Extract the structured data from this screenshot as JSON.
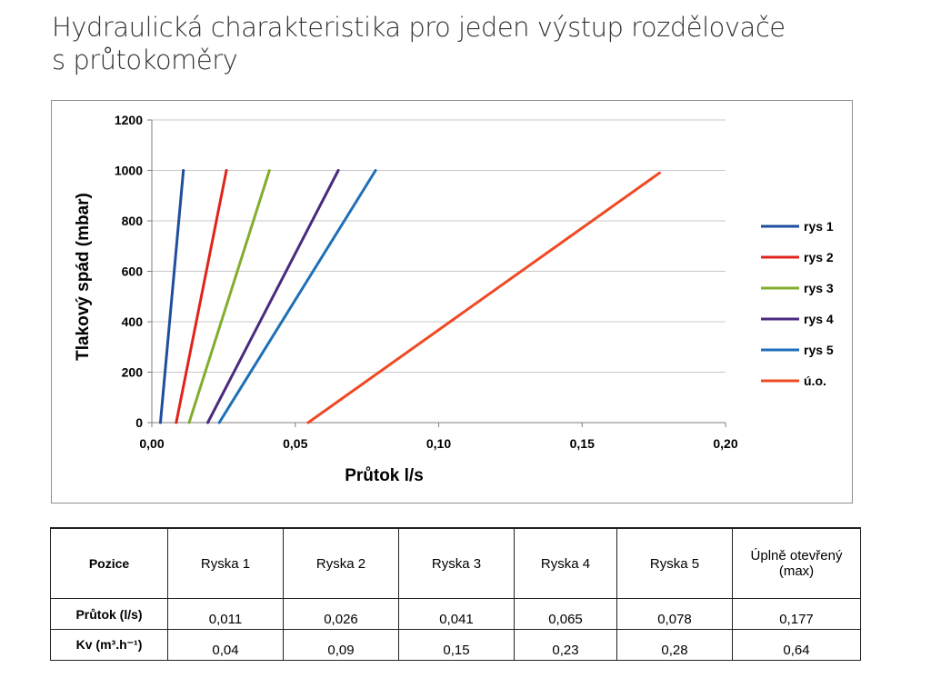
{
  "title_line1": "Hydraulická charakteristika pro jeden výstup rozdělovače",
  "title_line2": "s průtokoměry",
  "chart_data": {
    "type": "line",
    "xlabel": "Průtok l/s",
    "ylabel": "Tlakový spád (mbar)",
    "xlim": [
      0,
      0.2
    ],
    "ylim": [
      0,
      1200
    ],
    "x_ticks": [
      "0,00",
      "0,05",
      "0,10",
      "0,15",
      "0,20"
    ],
    "y_ticks": [
      "0",
      "200",
      "400",
      "600",
      "800",
      "1000",
      "1200"
    ],
    "grid": "horizontal",
    "legend_position": "right",
    "series": [
      {
        "name": "rys 1",
        "color": "#1f4e9c",
        "x": [
          0.003,
          0.011
        ],
        "y": [
          0,
          1000
        ]
      },
      {
        "name": "rys 2",
        "color": "#e0241b",
        "x": [
          0.0085,
          0.026
        ],
        "y": [
          0,
          1000
        ]
      },
      {
        "name": "rys 3",
        "color": "#82ad2e",
        "x": [
          0.013,
          0.041
        ],
        "y": [
          0,
          1000
        ]
      },
      {
        "name": "rys 4",
        "color": "#4b2a7e",
        "x": [
          0.0195,
          0.065
        ],
        "y": [
          0,
          1000
        ]
      },
      {
        "name": "rys 5",
        "color": "#1f6fb8",
        "x": [
          0.0235,
          0.078
        ],
        "y": [
          0,
          1000
        ]
      },
      {
        "name": "ú.o.",
        "color": "#f04a25",
        "x": [
          0.0545,
          0.177
        ],
        "y": [
          0,
          990
        ]
      }
    ]
  },
  "table": {
    "header": [
      "Pozice",
      "Ryska 1",
      "Ryska 2",
      "Ryska 3",
      "Ryska 4",
      "Ryska 5",
      "Úplně otevřený (max)"
    ],
    "rows": [
      {
        "label": "Průtok (l/s)",
        "values": [
          "0,011",
          "0,026",
          "0,041",
          "0,065",
          "0,078",
          "0,177"
        ]
      },
      {
        "label": "Kv (m³.h⁻¹)",
        "values": [
          "0,04",
          "0,09",
          "0,15",
          "0,23",
          "0,28",
          "0,64"
        ]
      }
    ]
  }
}
